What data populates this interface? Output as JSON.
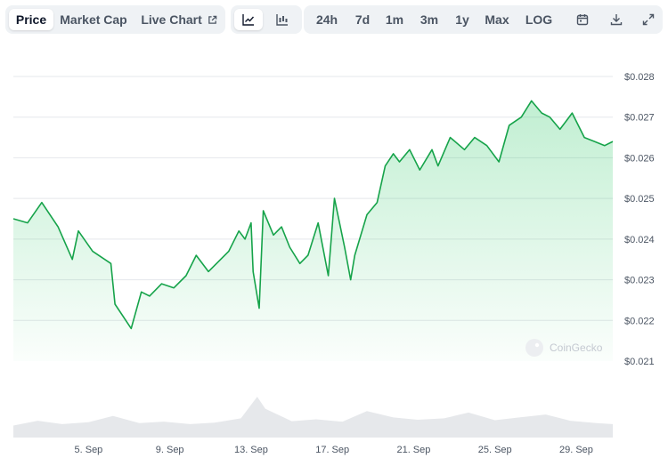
{
  "tabs": [
    {
      "label": "Price",
      "active": true
    },
    {
      "label": "Market Cap",
      "active": false
    },
    {
      "label": "Live Chart",
      "active": false
    }
  ],
  "chart_types": [
    {
      "icon": "line-chart-icon",
      "active": true
    },
    {
      "icon": "candlestick-chart-icon",
      "active": false
    }
  ],
  "ranges": [
    "24h",
    "7d",
    "1m",
    "3m",
    "1y",
    "Max",
    "LOG"
  ],
  "tools": [
    "calendar-icon",
    "download-icon",
    "expand-icon"
  ],
  "watermark": "CoinGecko",
  "colors": {
    "line": "#16a34a",
    "fill": "#22c55e",
    "grid": "#e5e7eb",
    "volume": "#e6e8eb"
  },
  "chart_data": {
    "type": "area",
    "x_ticks": [
      "5. Sep",
      "9. Sep",
      "13. Sep",
      "17. Sep",
      "21. Sep",
      "25. Sep",
      "29. Sep"
    ],
    "y_ticks": [
      "$0.021",
      "$0.022",
      "$0.023",
      "$0.024",
      "$0.025",
      "$0.026",
      "$0.027",
      "$0.028"
    ],
    "ylim": [
      0.021,
      0.028
    ],
    "x_start_day": 1.3,
    "x_end_day": 30.8,
    "grid": true,
    "series": [
      {
        "x": [
          1.3,
          2.0,
          2.7,
          3.5,
          4.2,
          4.5,
          5.2,
          6.1,
          6.3,
          7.1,
          7.6,
          8.0,
          8.6,
          9.2,
          9.8,
          10.3,
          10.9,
          11.5,
          11.9,
          12.4,
          12.7,
          13.0,
          13.1,
          13.4,
          13.6,
          14.1,
          14.5,
          14.9,
          15.4,
          15.8,
          16.3,
          16.8,
          17.1,
          17.6,
          17.9,
          18.1,
          18.7,
          19.2,
          19.6,
          20.0,
          20.3,
          20.8,
          21.3,
          21.9,
          22.2,
          22.8,
          23.5,
          24.0,
          24.6,
          25.2,
          25.7,
          26.3,
          26.8,
          27.3,
          27.7,
          28.2,
          28.8,
          29.4,
          29.9,
          30.4,
          30.8
        ],
        "y": [
          0.0245,
          0.0244,
          0.0249,
          0.0243,
          0.0235,
          0.0242,
          0.0237,
          0.0234,
          0.0224,
          0.0218,
          0.0227,
          0.0226,
          0.0229,
          0.0228,
          0.0231,
          0.0236,
          0.0232,
          0.0235,
          0.0237,
          0.0242,
          0.024,
          0.0244,
          0.0232,
          0.0223,
          0.0247,
          0.0241,
          0.0243,
          0.0238,
          0.0234,
          0.0236,
          0.0244,
          0.0231,
          0.025,
          0.0238,
          0.023,
          0.0236,
          0.0246,
          0.0249,
          0.0258,
          0.0261,
          0.0259,
          0.0262,
          0.0257,
          0.0262,
          0.0258,
          0.0265,
          0.0262,
          0.0265,
          0.0263,
          0.0259,
          0.0268,
          0.027,
          0.0274,
          0.0271,
          0.027,
          0.0267,
          0.0271,
          0.0265,
          0.0264,
          0.0263,
          0.0264
        ]
      }
    ],
    "volume": {
      "x": [
        1.3,
        2.5,
        3.7,
        5.0,
        6.2,
        7.5,
        8.7,
        10.0,
        11.2,
        12.5,
        13.3,
        13.7,
        14.2,
        15.0,
        16.2,
        17.5,
        18.7,
        20.0,
        21.2,
        22.5,
        23.7,
        25.0,
        26.2,
        27.5,
        28.7,
        30.0,
        30.8
      ],
      "y": [
        0.25,
        0.35,
        0.28,
        0.32,
        0.45,
        0.3,
        0.33,
        0.28,
        0.31,
        0.4,
        0.85,
        0.6,
        0.5,
        0.34,
        0.38,
        0.33,
        0.55,
        0.42,
        0.37,
        0.4,
        0.52,
        0.36,
        0.42,
        0.48,
        0.35,
        0.3,
        0.28
      ]
    }
  }
}
